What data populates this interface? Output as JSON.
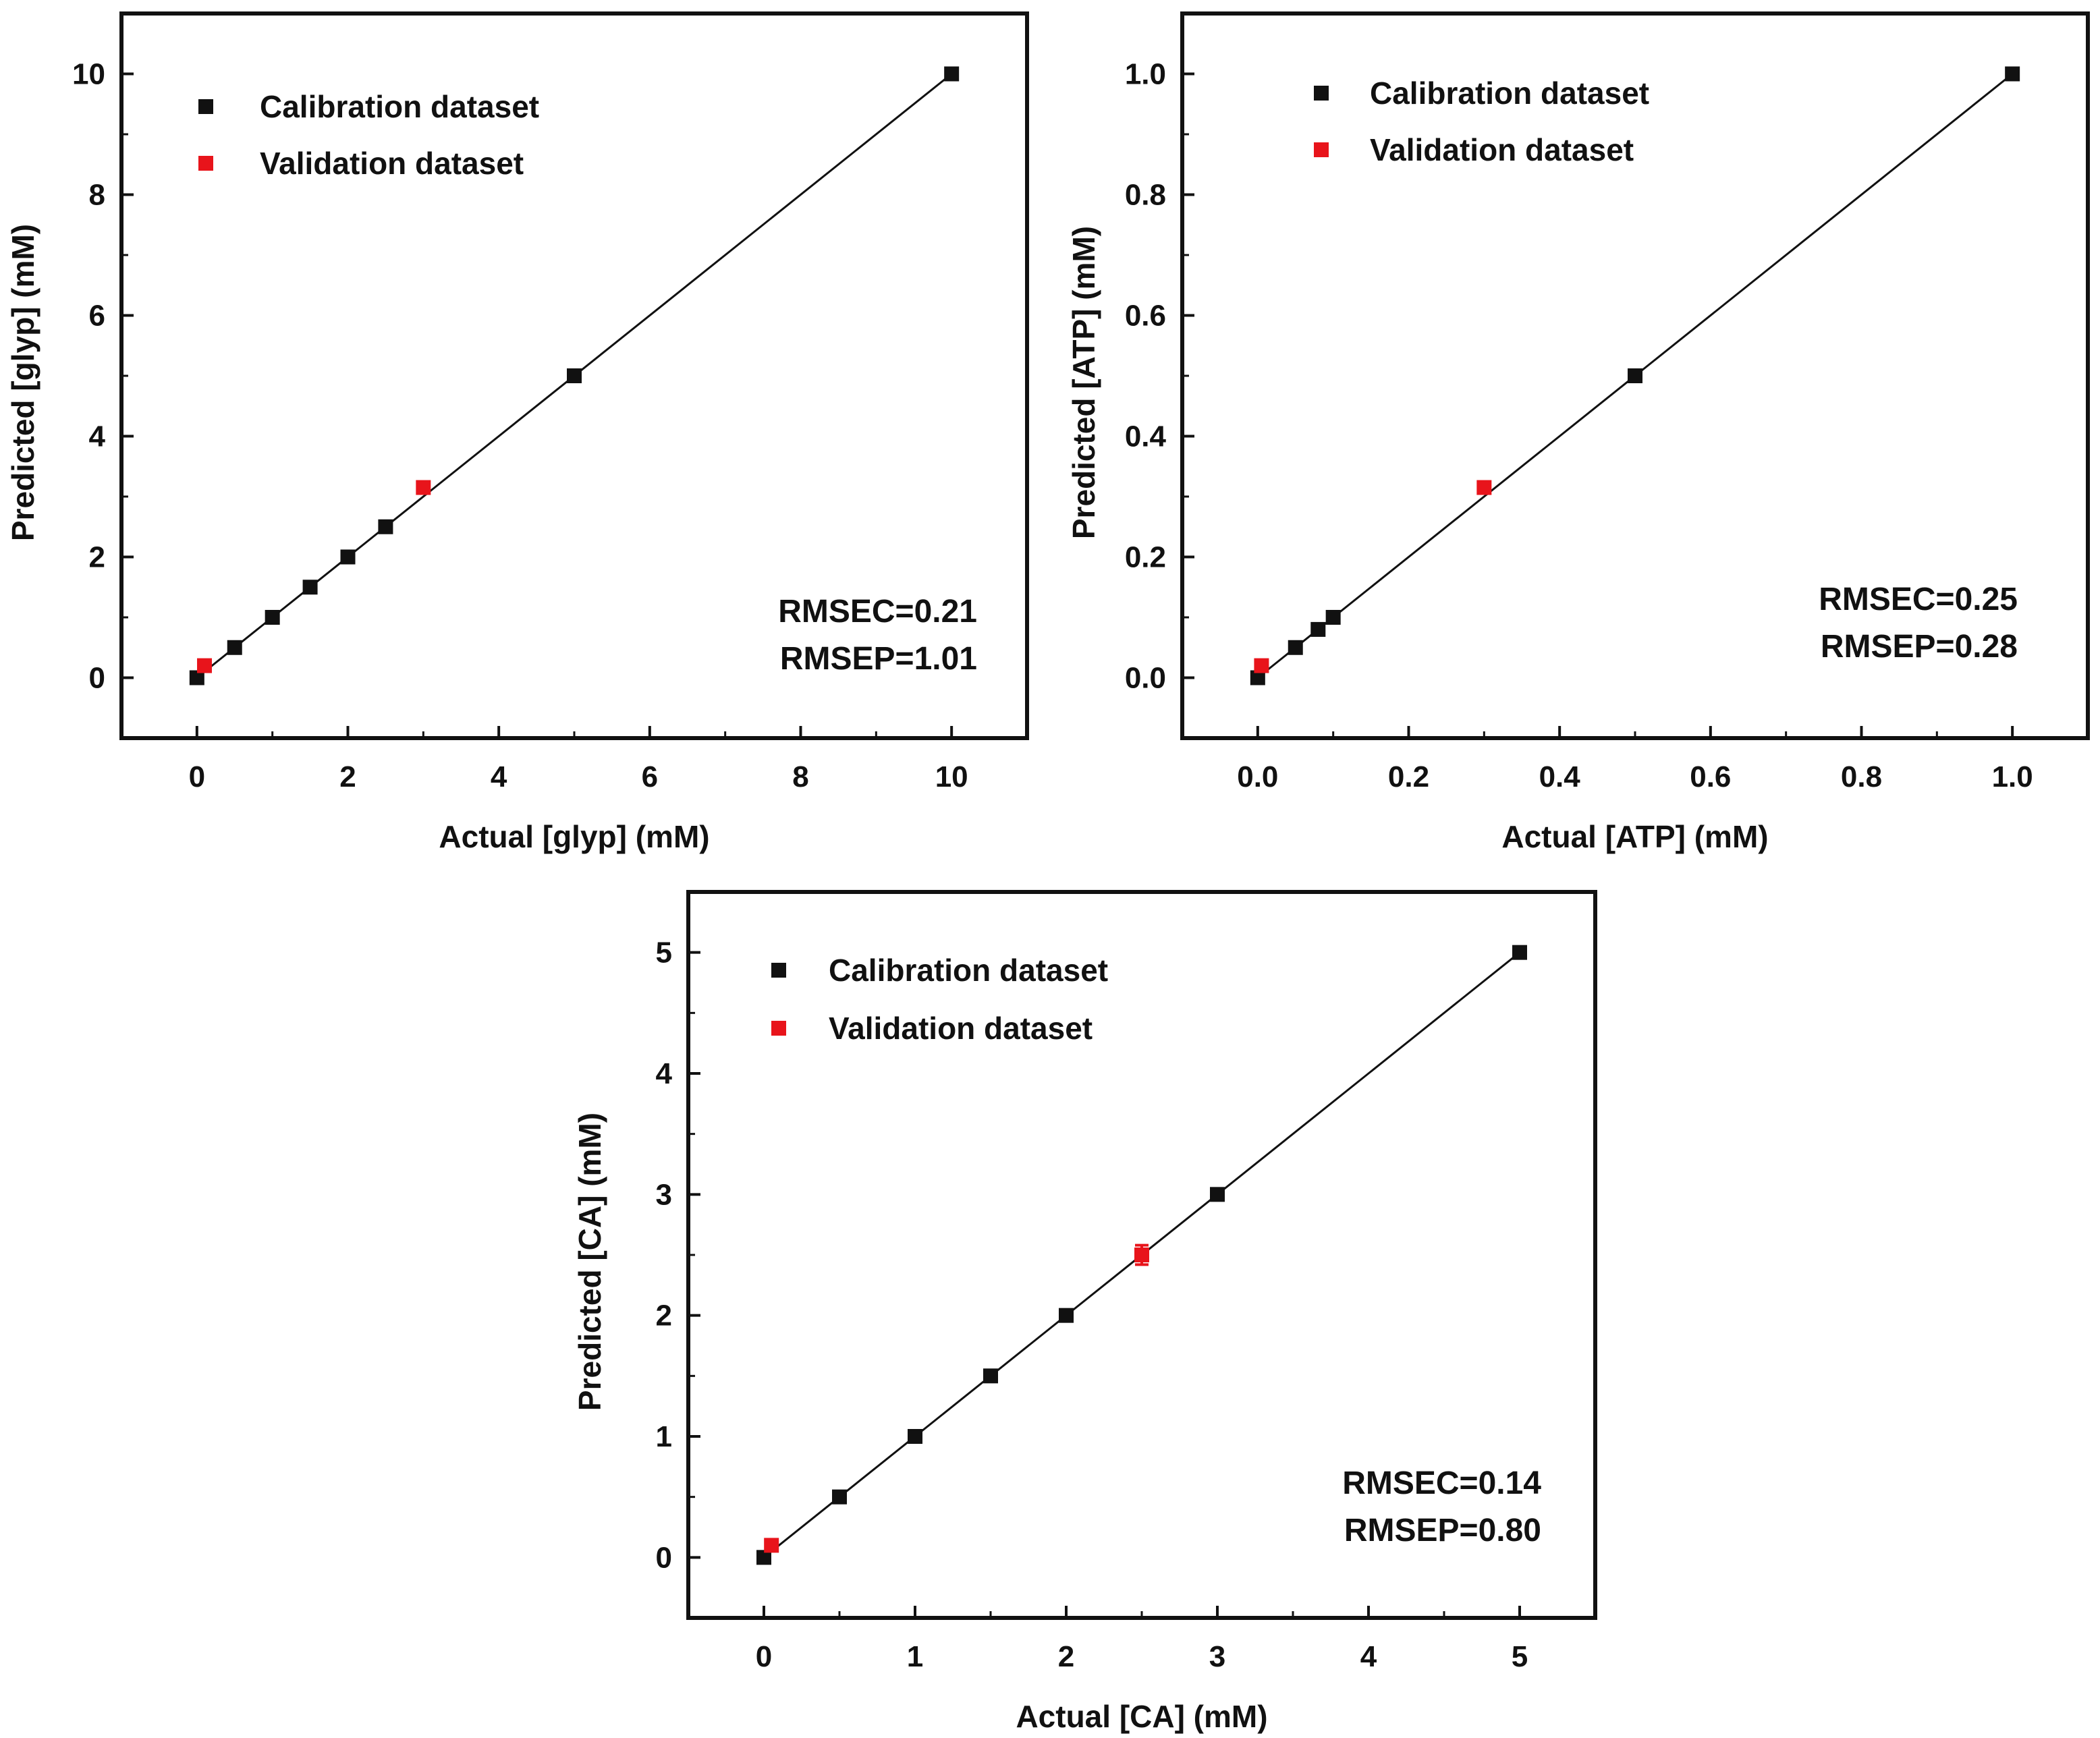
{
  "chart_data": [
    {
      "type": "scatter",
      "title": "",
      "xlabel": "Actual [glyp] (mM)",
      "ylabel": "Predicted [glyp] (mM)",
      "xlim": [
        -1,
        11
      ],
      "ylim": [
        -1,
        11
      ],
      "xticks": [
        0,
        2,
        4,
        6,
        8,
        10
      ],
      "yticks": [
        0,
        2,
        4,
        6,
        8,
        10
      ],
      "xtick_labels": [
        "0",
        "2",
        "4",
        "6",
        "8",
        "10"
      ],
      "ytick_labels": [
        "0",
        "2",
        "4",
        "6",
        "8",
        "10"
      ],
      "grid": false,
      "legend_position": "top-left",
      "fit_line": {
        "x": [
          0,
          10
        ],
        "y": [
          0,
          10
        ]
      },
      "series": [
        {
          "name": "Calibration dataset",
          "color": "#111111",
          "x": [
            0,
            0.5,
            1,
            1.5,
            2,
            2.5,
            5,
            10
          ],
          "y": [
            0,
            0.5,
            1,
            1.5,
            2,
            2.5,
            5,
            10
          ]
        },
        {
          "name": "Validation dataset",
          "color": "#e8141b",
          "x": [
            0.1,
            3
          ],
          "y": [
            0.2,
            3.15
          ]
        }
      ],
      "annotations": [
        "RMSEC=0.21",
        "RMSEP=1.01"
      ]
    },
    {
      "type": "scatter",
      "title": "",
      "xlabel": "Actual [ATP] (mM)",
      "ylabel": "Predicted [ATP] (mM)",
      "xlim": [
        -0.1,
        1.1
      ],
      "ylim": [
        -0.1,
        1.1
      ],
      "xticks": [
        0,
        0.2,
        0.4,
        0.6,
        0.8,
        1.0
      ],
      "yticks": [
        0,
        0.2,
        0.4,
        0.6,
        0.8,
        1.0
      ],
      "xtick_labels": [
        "0.0",
        "0.2",
        "0.4",
        "0.6",
        "0.8",
        "1.0"
      ],
      "ytick_labels": [
        "0.0",
        "0.2",
        "0.4",
        "0.6",
        "0.8",
        "1.0"
      ],
      "grid": false,
      "legend_position": "top-left",
      "fit_line": {
        "x": [
          0,
          1
        ],
        "y": [
          0,
          1
        ]
      },
      "series": [
        {
          "name": "Calibration dataset",
          "color": "#111111",
          "x": [
            0,
            0.05,
            0.08,
            0.1,
            0.5,
            1.0
          ],
          "y": [
            0,
            0.05,
            0.08,
            0.1,
            0.5,
            1.0
          ]
        },
        {
          "name": "Validation dataset",
          "color": "#e8141b",
          "x": [
            0.005,
            0.3
          ],
          "y": [
            0.02,
            0.315
          ]
        }
      ],
      "annotations": [
        "RMSEC=0.25",
        "RMSEP=0.28"
      ]
    },
    {
      "type": "scatter",
      "title": "",
      "xlabel": "Actual [CA] (mM)",
      "ylabel": "Predicted [CA] (mM)",
      "xlim": [
        -0.5,
        5.5
      ],
      "ylim": [
        -0.5,
        5.5
      ],
      "xticks": [
        0,
        1,
        2,
        3,
        4,
        5
      ],
      "yticks": [
        0,
        1,
        2,
        3,
        4,
        5
      ],
      "xtick_labels": [
        "0",
        "1",
        "2",
        "3",
        "4",
        "5"
      ],
      "ytick_labels": [
        "0",
        "1",
        "2",
        "3",
        "4",
        "5"
      ],
      "grid": false,
      "legend_position": "top-left",
      "fit_line": {
        "x": [
          0,
          5
        ],
        "y": [
          0,
          5
        ]
      },
      "series": [
        {
          "name": "Calibration dataset",
          "color": "#111111",
          "x": [
            0,
            0.5,
            1,
            1.5,
            2,
            3,
            5
          ],
          "y": [
            0,
            0.5,
            1,
            1.5,
            2,
            3,
            5
          ]
        },
        {
          "name": "Validation dataset",
          "color": "#e8141b",
          "x": [
            0.05,
            2.5
          ],
          "y": [
            0.1,
            2.5
          ],
          "error": [
            0,
            0.08
          ]
        }
      ],
      "annotations": [
        "RMSEC=0.14",
        "RMSEP=0.80"
      ]
    }
  ]
}
